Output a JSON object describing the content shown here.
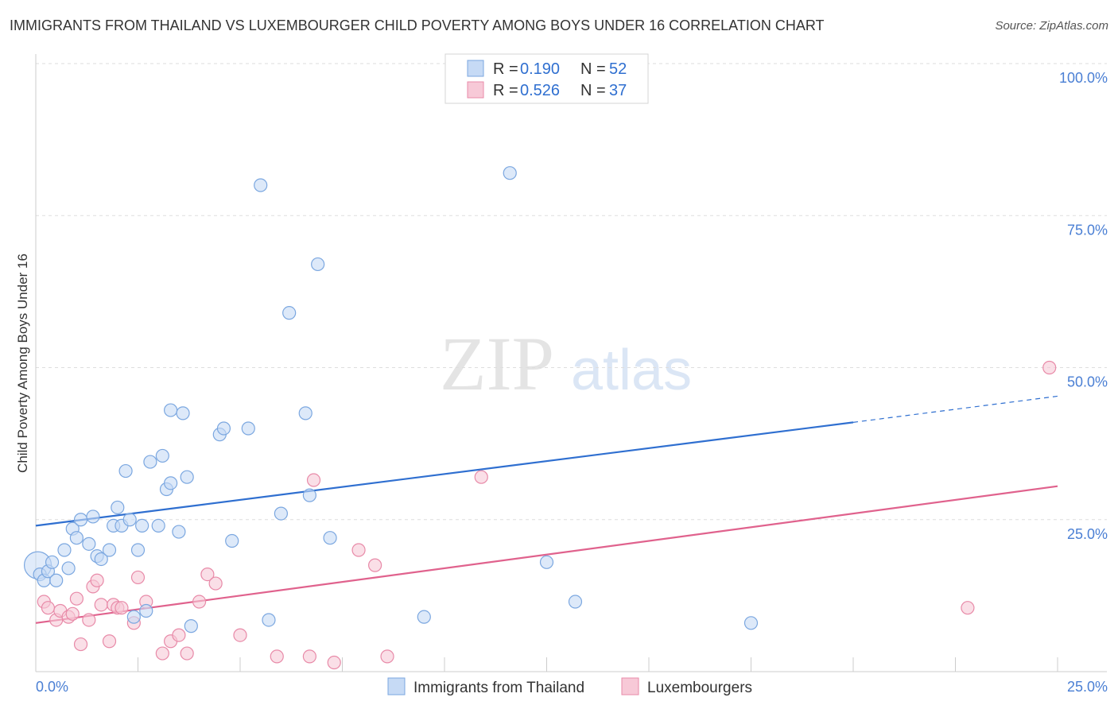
{
  "chart_data": {
    "type": "scatter",
    "title": "IMMIGRANTS FROM THAILAND VS LUXEMBOURGER CHILD POVERTY AMONG BOYS UNDER 16 CORRELATION CHART",
    "source": "Source: ZipAtlas.com",
    "watermark": {
      "bold": "ZIP",
      "light": "atlas"
    },
    "xlabel": "",
    "ylabel": "Child Poverty Among Boys Under 16",
    "xlim": [
      0,
      25
    ],
    "ylim": [
      0,
      100
    ],
    "x_tick_labels": [
      "0.0%",
      "25.0%"
    ],
    "y_tick_values": [
      25,
      50,
      75,
      100
    ],
    "y_tick_labels": [
      "25.0%",
      "50.0%",
      "75.0%",
      "100.0%"
    ],
    "grid": true,
    "legend_position": "top-center",
    "series": [
      {
        "name": "Immigrants from Thailand",
        "color": "#7ba7e0",
        "fill": "#c6daf5",
        "line_color": "#2f6fd0",
        "R": "0.190",
        "N": "52",
        "trend": {
          "x0": 0,
          "y0": 24.0,
          "x1": 20,
          "y1": 41.0,
          "dashed_to_x": 25,
          "dashed_to_y": 45.3
        },
        "points": [
          [
            0.05,
            17.5
          ],
          [
            0.1,
            16.0
          ],
          [
            0.2,
            15.0
          ],
          [
            0.3,
            16.5
          ],
          [
            0.4,
            18.0
          ],
          [
            0.5,
            15.0
          ],
          [
            0.7,
            20.0
          ],
          [
            0.8,
            17.0
          ],
          [
            0.9,
            23.5
          ],
          [
            1.0,
            22.0
          ],
          [
            1.1,
            25.0
          ],
          [
            1.3,
            21.0
          ],
          [
            1.4,
            25.5
          ],
          [
            1.5,
            19.0
          ],
          [
            1.6,
            18.5
          ],
          [
            1.8,
            20.0
          ],
          [
            1.9,
            24.0
          ],
          [
            2.0,
            27.0
          ],
          [
            2.1,
            24.0
          ],
          [
            2.2,
            33.0
          ],
          [
            2.3,
            25.0
          ],
          [
            2.4,
            9.0
          ],
          [
            2.5,
            20.0
          ],
          [
            2.6,
            24.0
          ],
          [
            2.7,
            10.0
          ],
          [
            2.8,
            34.5
          ],
          [
            3.0,
            24.0
          ],
          [
            3.1,
            35.5
          ],
          [
            3.2,
            30.0
          ],
          [
            3.3,
            31.0
          ],
          [
            3.3,
            43.0
          ],
          [
            3.5,
            23.0
          ],
          [
            3.6,
            42.5
          ],
          [
            3.7,
            32.0
          ],
          [
            3.8,
            7.5
          ],
          [
            4.5,
            39.0
          ],
          [
            4.6,
            40.0
          ],
          [
            4.8,
            21.5
          ],
          [
            5.2,
            40.0
          ],
          [
            5.5,
            80.0
          ],
          [
            5.7,
            8.5
          ],
          [
            6.0,
            26.0
          ],
          [
            6.2,
            59.0
          ],
          [
            6.6,
            42.5
          ],
          [
            6.7,
            29.0
          ],
          [
            6.9,
            67.0
          ],
          [
            7.2,
            22.0
          ],
          [
            9.5,
            9.0
          ],
          [
            11.6,
            82.0
          ],
          [
            12.5,
            18.0
          ],
          [
            13.2,
            11.5
          ],
          [
            17.5,
            8.0
          ]
        ]
      },
      {
        "name": "Luxembourgers",
        "color": "#e88aa8",
        "fill": "#f7c9d7",
        "line_color": "#e0628d",
        "R": "0.526",
        "N": "37",
        "trend": {
          "x0": 0,
          "y0": 8.0,
          "x1": 25,
          "y1": 30.5
        },
        "points": [
          [
            0.2,
            11.5
          ],
          [
            0.3,
            10.5
          ],
          [
            0.5,
            8.5
          ],
          [
            0.6,
            10.0
          ],
          [
            0.8,
            9.0
          ],
          [
            0.9,
            9.5
          ],
          [
            1.0,
            12.0
          ],
          [
            1.1,
            4.5
          ],
          [
            1.3,
            8.5
          ],
          [
            1.4,
            14.0
          ],
          [
            1.5,
            15.0
          ],
          [
            1.6,
            11.0
          ],
          [
            1.8,
            5.0
          ],
          [
            1.9,
            11.0
          ],
          [
            2.0,
            10.5
          ],
          [
            2.1,
            10.5
          ],
          [
            2.4,
            8.0
          ],
          [
            2.5,
            15.5
          ],
          [
            2.7,
            11.5
          ],
          [
            3.1,
            3.0
          ],
          [
            3.3,
            5.0
          ],
          [
            3.5,
            6.0
          ],
          [
            3.7,
            3.0
          ],
          [
            4.0,
            11.5
          ],
          [
            4.2,
            16.0
          ],
          [
            4.4,
            14.5
          ],
          [
            5.0,
            6.0
          ],
          [
            5.9,
            2.5
          ],
          [
            6.7,
            2.5
          ],
          [
            6.8,
            31.5
          ],
          [
            7.3,
            1.5
          ],
          [
            7.9,
            20.0
          ],
          [
            8.3,
            17.5
          ],
          [
            8.6,
            2.5
          ],
          [
            10.9,
            32.0
          ],
          [
            22.8,
            10.5
          ],
          [
            24.8,
            50.0
          ]
        ]
      }
    ]
  }
}
